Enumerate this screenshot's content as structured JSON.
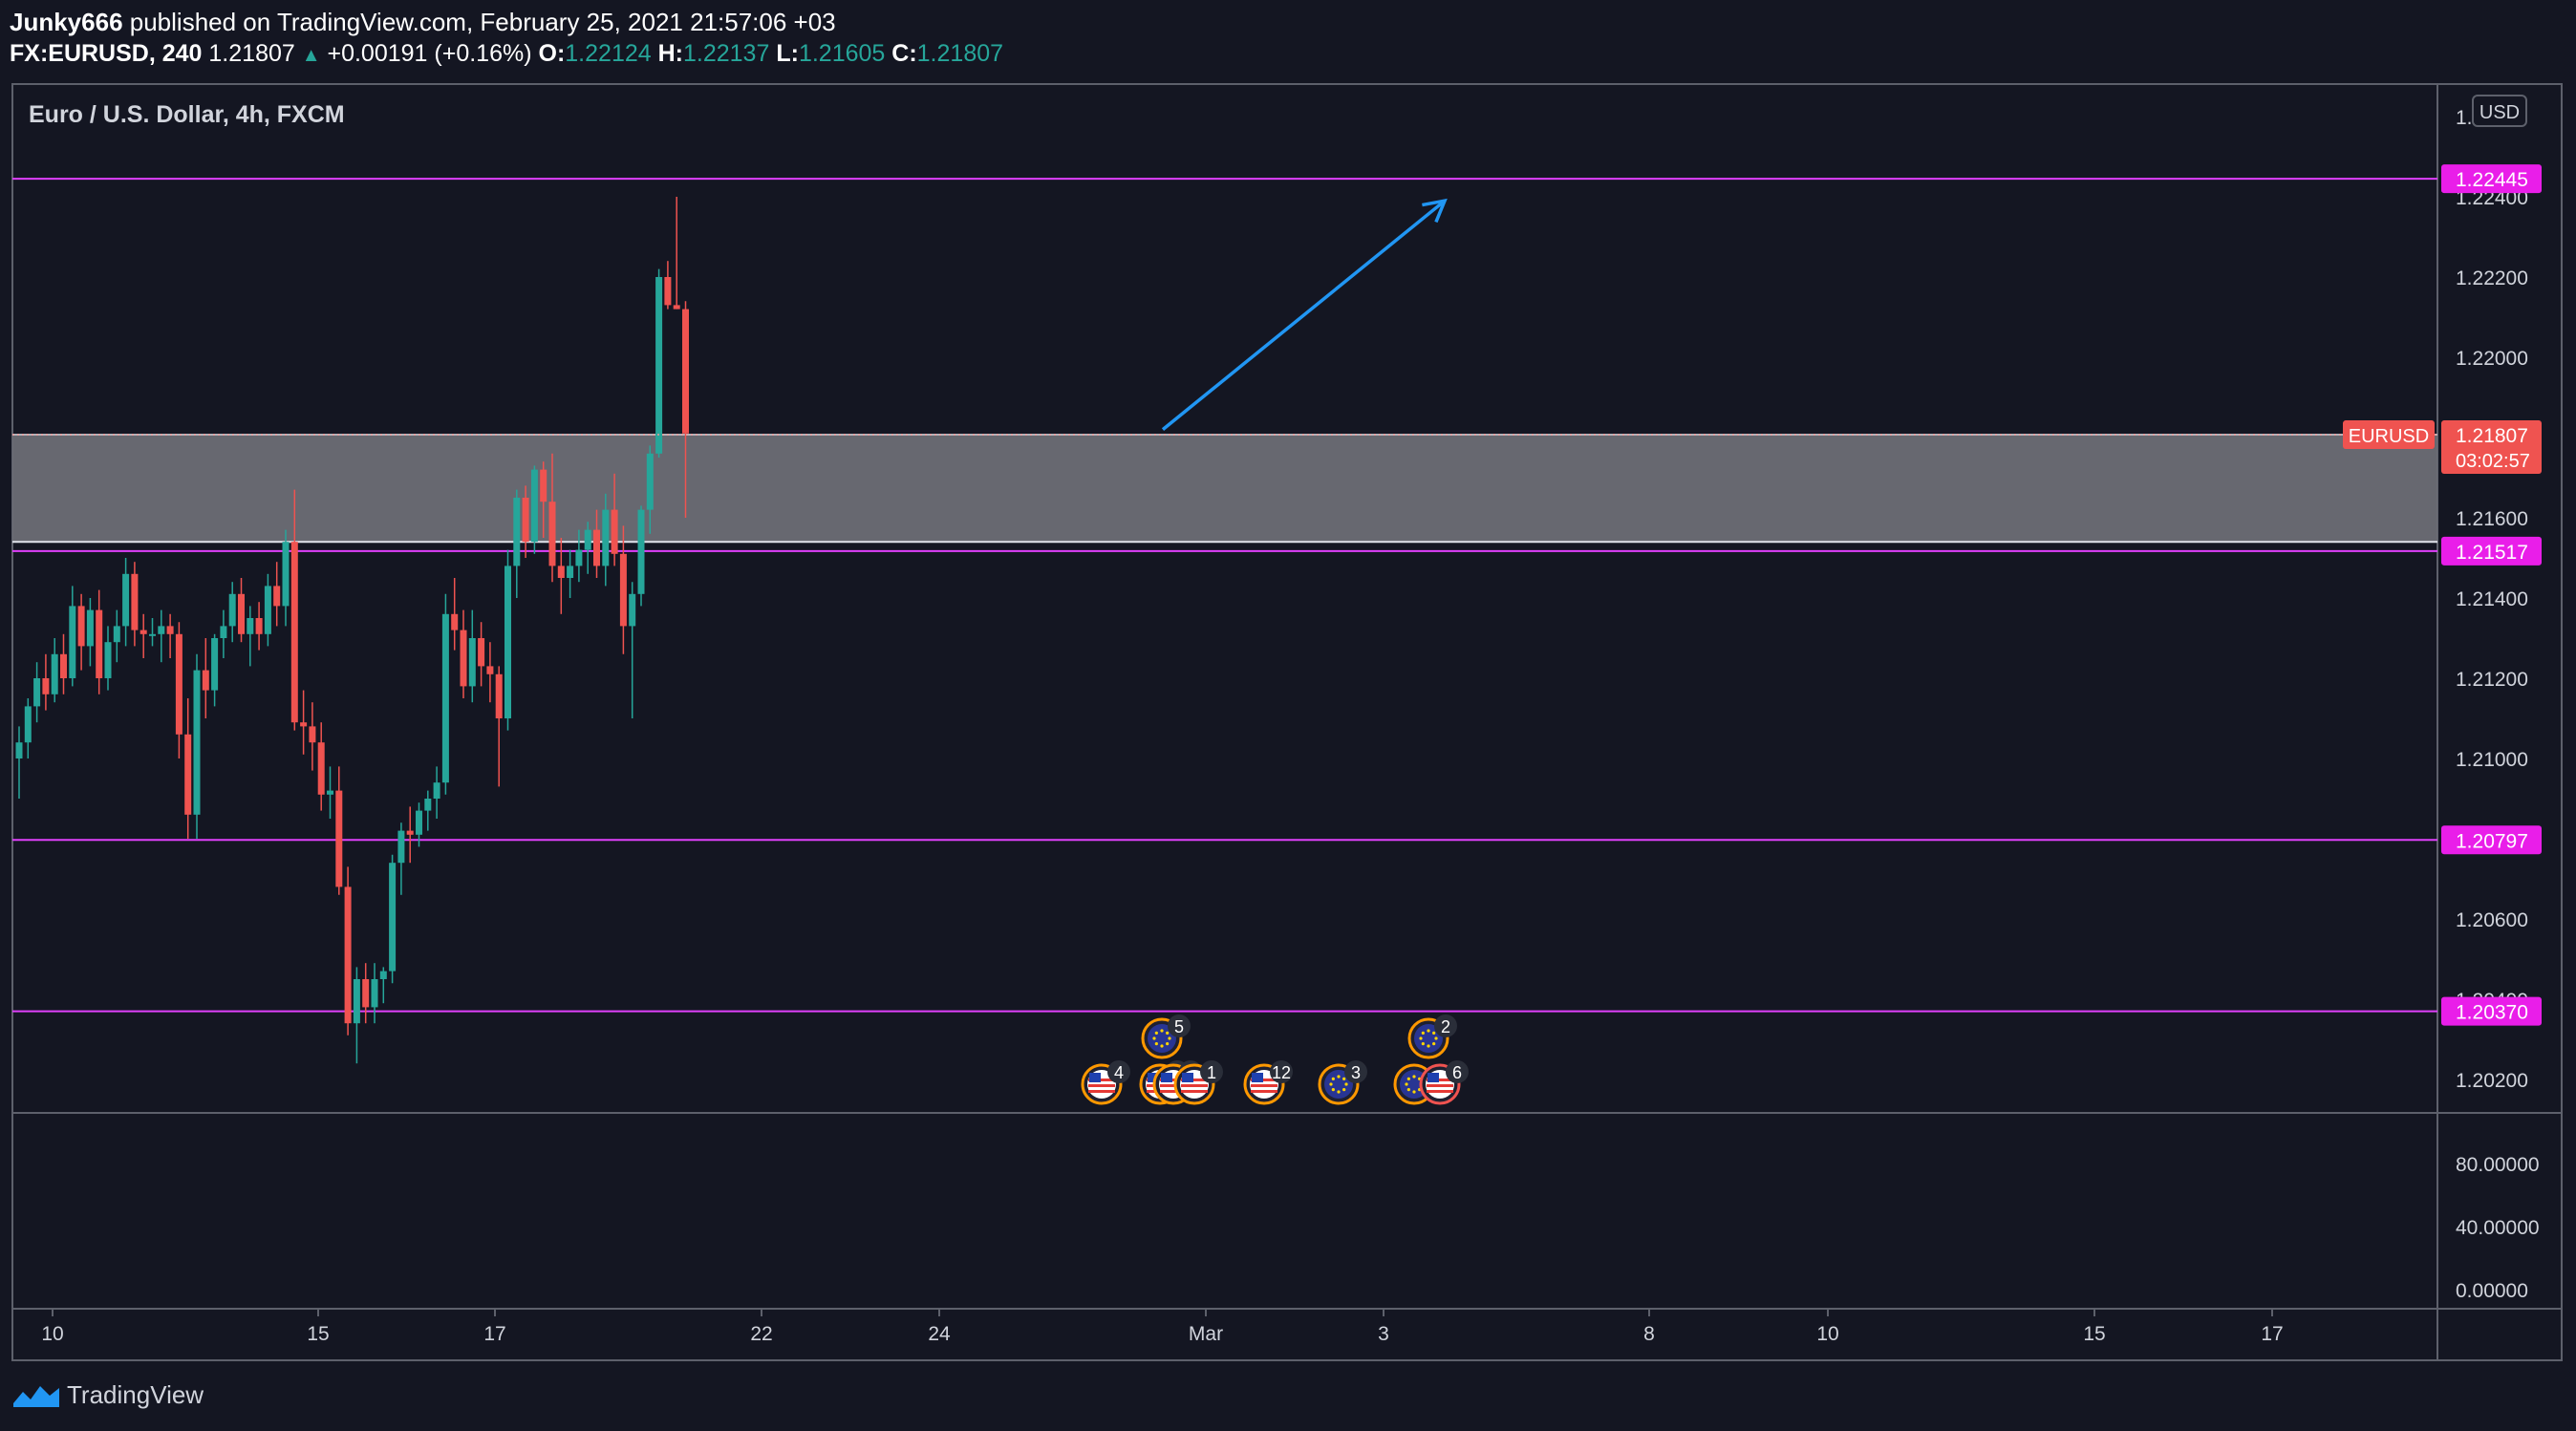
{
  "header": {
    "author": "Junky666",
    "published_text": "published on TradingView.com, February 25, 2021 21:57:06 +03",
    "symbol": "FX:EURUSD, 240",
    "last": "1.21807",
    "change_arrow": "▲",
    "change": "+0.00191 (+0.16%)",
    "o_label": "O:",
    "o_value": "1.22124",
    "h_label": "H:",
    "h_value": "1.22137",
    "l_label": "L:",
    "l_value": "1.21605",
    "c_label": "C:",
    "c_value": "1.21807"
  },
  "chart_title": "Euro / U.S. Dollar, 4h, FXCM",
  "currency_button": "USD",
  "footer": {
    "brand": "TradingView",
    "icon": "tradingview-logo-icon"
  },
  "colors": {
    "background": "#141622",
    "up": "#26a69a",
    "down": "#ef5350",
    "level_line": "#e040fb",
    "level_label_bg": "#e91ee9",
    "arrow": "#2196f3",
    "zone": "#6b6d75",
    "price_label_bg": "#ef5350"
  },
  "price_scale": {
    "ticks": [
      "1.22400",
      "1.22200",
      "1.22000",
      "1.21600",
      "1.21400",
      "1.21200",
      "1.21000",
      "1.20600",
      "1.20200"
    ],
    "levels": [
      "1.22445",
      "1.21517",
      "1.20797",
      "1.20370"
    ],
    "current_symbol": "EURUSD",
    "current_price": "1.21807",
    "countdown": "03:02:57"
  },
  "indicator_scale": {
    "ticks": [
      "80.00000",
      "40.00000",
      "0.00000"
    ]
  },
  "time_axis": {
    "labels": [
      "10",
      "15",
      "17",
      "22",
      "24",
      "Mar",
      "3",
      "8",
      "10",
      "15",
      "17"
    ]
  },
  "events": [
    {
      "row": "top",
      "flag": "eu",
      "count": "5"
    },
    {
      "row": "top",
      "flag": "eu",
      "count": "2"
    },
    {
      "row": "bottom",
      "flag": "us",
      "count": "4"
    },
    {
      "row": "bottom",
      "flag": "us",
      "count": "2"
    },
    {
      "row": "bottom",
      "flag": "us",
      "count": "2"
    },
    {
      "row": "bottom",
      "flag": "us",
      "count": "1"
    },
    {
      "row": "bottom",
      "flag": "us",
      "count": "12"
    },
    {
      "row": "bottom",
      "flag": "eu",
      "count": "3"
    },
    {
      "row": "bottom",
      "flag": "eu",
      "count": ""
    },
    {
      "row": "bottom",
      "flag": "us",
      "count": "6"
    }
  ],
  "chart_data": {
    "type": "candlestick",
    "title": "Euro / U.S. Dollar, 4h, FXCM",
    "ylim": [
      1.2,
      1.227
    ],
    "indicator_ylim": [
      0,
      100
    ],
    "horizontal_levels": [
      1.22445,
      1.21517,
      1.20797,
      1.2037
    ],
    "zone": [
      1.2154,
      1.21807
    ],
    "trend_arrow": {
      "from_price": 1.2182,
      "to_price": 1.2239
    },
    "candles": [
      [
        1.21,
        1.2108,
        1.209,
        1.2104
      ],
      [
        1.2104,
        1.2115,
        1.21,
        1.2113
      ],
      [
        1.2113,
        1.2124,
        1.2109,
        1.212
      ],
      [
        1.212,
        1.2126,
        1.2112,
        1.2116
      ],
      [
        1.2116,
        1.213,
        1.2114,
        1.2126
      ],
      [
        1.2126,
        1.2131,
        1.2116,
        1.212
      ],
      [
        1.212,
        1.2143,
        1.2118,
        1.2138
      ],
      [
        1.2138,
        1.2141,
        1.2122,
        1.2128
      ],
      [
        1.2128,
        1.214,
        1.2123,
        1.2137
      ],
      [
        1.2137,
        1.2142,
        1.2116,
        1.212
      ],
      [
        1.212,
        1.2133,
        1.2117,
        1.2129
      ],
      [
        1.2129,
        1.2137,
        1.2124,
        1.2133
      ],
      [
        1.2133,
        1.215,
        1.2128,
        1.2146
      ],
      [
        1.2146,
        1.2149,
        1.2128,
        1.2132
      ],
      [
        1.2132,
        1.2136,
        1.2125,
        1.2131
      ],
      [
        1.2131,
        1.2135,
        1.2128,
        1.2131
      ],
      [
        1.2131,
        1.2137,
        1.2124,
        1.2133
      ],
      [
        1.2133,
        1.2136,
        1.2125,
        1.2131
      ],
      [
        1.2131,
        1.2134,
        1.21,
        1.2106
      ],
      [
        1.2106,
        1.2115,
        1.208,
        1.2086
      ],
      [
        1.2086,
        1.2126,
        1.208,
        1.2122
      ],
      [
        1.2122,
        1.213,
        1.211,
        1.2117
      ],
      [
        1.2117,
        1.2131,
        1.2113,
        1.213
      ],
      [
        1.213,
        1.2137,
        1.2125,
        1.2133
      ],
      [
        1.2133,
        1.2144,
        1.2129,
        1.2141
      ],
      [
        1.2141,
        1.2145,
        1.2129,
        1.2131
      ],
      [
        1.2131,
        1.2138,
        1.2123,
        1.2135
      ],
      [
        1.2135,
        1.2139,
        1.2127,
        1.2131
      ],
      [
        1.2131,
        1.2146,
        1.2128,
        1.2143
      ],
      [
        1.2143,
        1.2149,
        1.2133,
        1.2138
      ],
      [
        1.2138,
        1.2157,
        1.2133,
        1.2154
      ],
      [
        1.2154,
        1.2167,
        1.2107,
        1.2109
      ],
      [
        1.2109,
        1.2117,
        1.2101,
        1.2108
      ],
      [
        1.2108,
        1.2114,
        1.2097,
        1.2104
      ],
      [
        1.2104,
        1.2109,
        1.2087,
        1.2091
      ],
      [
        1.2091,
        1.2098,
        1.2085,
        1.2092
      ],
      [
        1.2092,
        1.2098,
        1.2066,
        1.2068
      ],
      [
        1.2068,
        1.2073,
        1.2031,
        1.2034
      ],
      [
        1.2034,
        1.2048,
        1.2024,
        1.2045
      ],
      [
        1.2045,
        1.2049,
        1.2034,
        1.2038
      ],
      [
        1.2038,
        1.2049,
        1.2034,
        1.2045
      ],
      [
        1.2045,
        1.2048,
        1.2039,
        1.2047
      ],
      [
        1.2047,
        1.2076,
        1.2044,
        1.2074
      ],
      [
        1.2074,
        1.2084,
        1.2066,
        1.2082
      ],
      [
        1.2082,
        1.2088,
        1.2074,
        1.2081
      ],
      [
        1.2081,
        1.2089,
        1.2078,
        1.2087
      ],
      [
        1.2087,
        1.2092,
        1.2082,
        1.209
      ],
      [
        1.209,
        1.2098,
        1.2085,
        1.2094
      ],
      [
        1.2094,
        1.2141,
        1.2091,
        1.2136
      ],
      [
        1.2136,
        1.2145,
        1.2127,
        1.2132
      ],
      [
        1.2132,
        1.2137,
        1.2115,
        1.2118
      ],
      [
        1.2118,
        1.2137,
        1.2114,
        1.213
      ],
      [
        1.213,
        1.2134,
        1.2118,
        1.2123
      ],
      [
        1.2123,
        1.2129,
        1.2114,
        1.2121
      ],
      [
        1.2121,
        1.2123,
        1.2093,
        1.211
      ],
      [
        1.211,
        1.2152,
        1.2107,
        1.2148
      ],
      [
        1.2148,
        1.2167,
        1.214,
        1.2165
      ],
      [
        1.2165,
        1.2168,
        1.215,
        1.2154
      ],
      [
        1.2154,
        1.2173,
        1.2151,
        1.2172
      ],
      [
        1.2172,
        1.2174,
        1.2155,
        1.2164
      ],
      [
        1.2164,
        1.2176,
        1.2144,
        1.2148
      ],
      [
        1.2148,
        1.2155,
        1.2136,
        1.2145
      ],
      [
        1.2145,
        1.2152,
        1.214,
        1.2148
      ],
      [
        1.2148,
        1.2157,
        1.2144,
        1.2152
      ],
      [
        1.2152,
        1.2159,
        1.2146,
        1.2157
      ],
      [
        1.2157,
        1.2162,
        1.2145,
        1.2148
      ],
      [
        1.2148,
        1.2166,
        1.2143,
        1.2162
      ],
      [
        1.2162,
        1.2171,
        1.2148,
        1.2151
      ],
      [
        1.2151,
        1.2158,
        1.2126,
        1.2133
      ],
      [
        1.2133,
        1.2144,
        1.211,
        1.2141
      ],
      [
        1.2141,
        1.2163,
        1.2138,
        1.2162
      ],
      [
        1.2162,
        1.2178,
        1.2156,
        1.2176
      ],
      [
        1.2176,
        1.2222,
        1.2175,
        1.222
      ],
      [
        1.222,
        1.2224,
        1.2212,
        1.2213
      ],
      [
        1.2213,
        1.224,
        1.2212,
        1.2212
      ],
      [
        1.2212,
        1.2214,
        1.216,
        1.2181
      ]
    ]
  }
}
